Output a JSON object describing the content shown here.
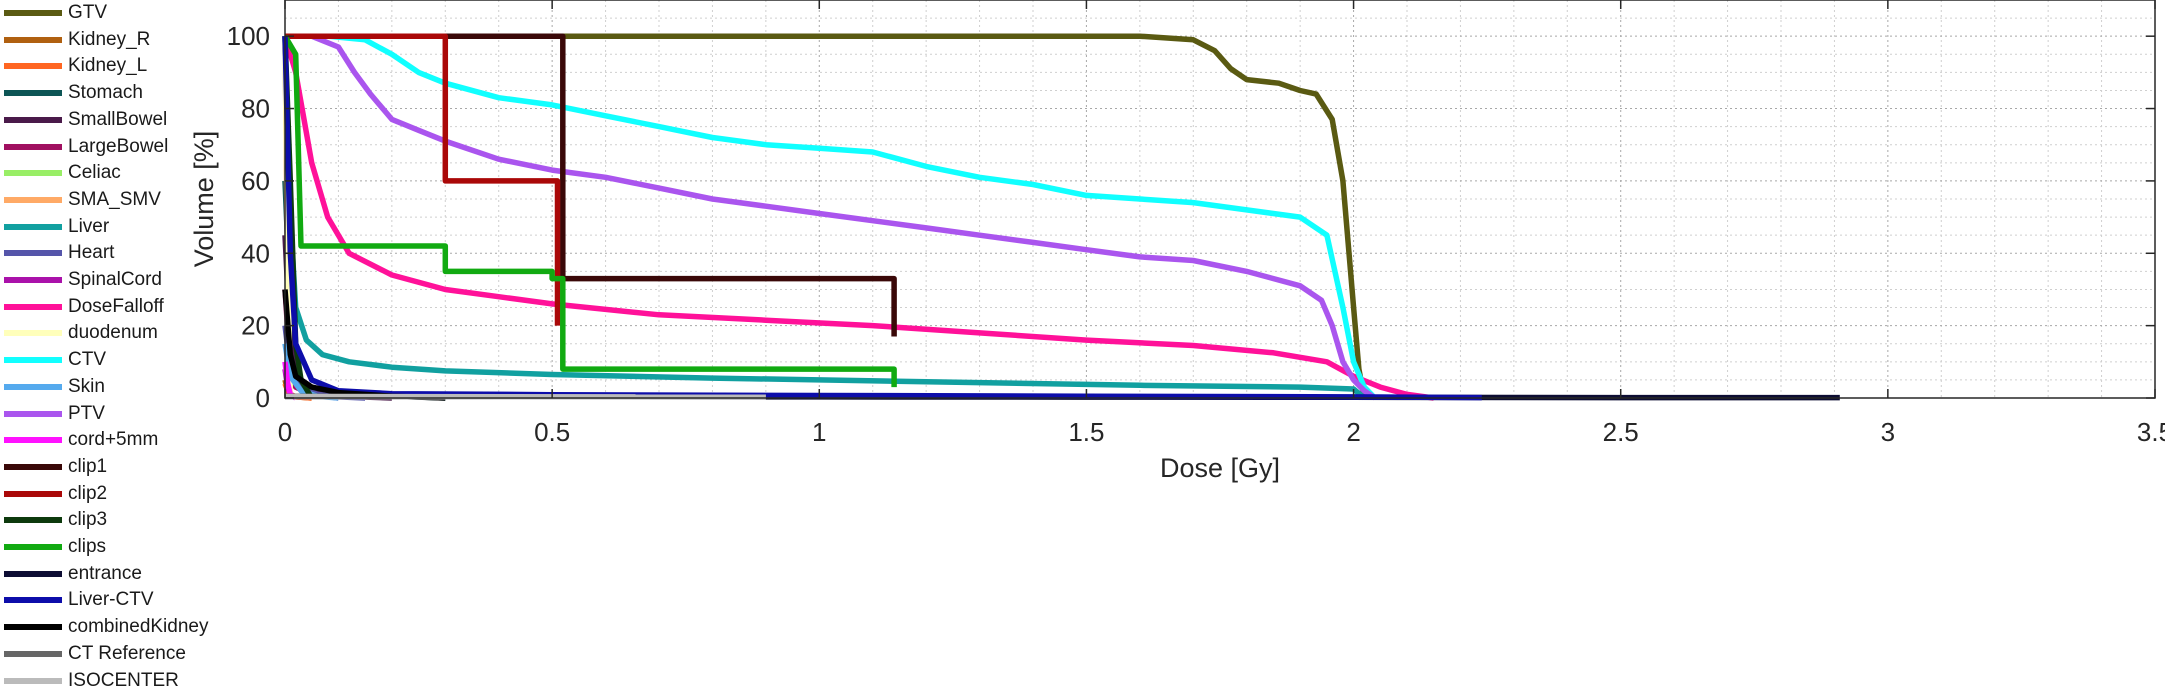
{
  "chart_data": {
    "type": "line",
    "title": "",
    "xlabel": "Dose [Gy]",
    "ylabel": "Volume [%]",
    "xlim": [
      0,
      3.5
    ],
    "ylim": [
      0,
      110
    ],
    "xticks": [
      {
        "value": 0,
        "label": "0"
      },
      {
        "value": 0.5,
        "label": "0.5"
      },
      {
        "value": 1,
        "label": "1"
      },
      {
        "value": 1.5,
        "label": "1.5"
      },
      {
        "value": 2,
        "label": "2"
      },
      {
        "value": 2.5,
        "label": "2.5"
      },
      {
        "value": 3,
        "label": "3"
      },
      {
        "value": 3.5,
        "label": "3.5"
      }
    ],
    "yticks": [
      {
        "value": 0,
        "label": "0"
      },
      {
        "value": 20,
        "label": "20"
      },
      {
        "value": 40,
        "label": "40"
      },
      {
        "value": 60,
        "label": "60"
      },
      {
        "value": 80,
        "label": "80"
      },
      {
        "value": 100,
        "label": "100"
      }
    ],
    "grid": "major and minor, dotted",
    "legend_position": "left, outside plot",
    "series": [
      {
        "name": "GTV",
        "color": "#5a5a12",
        "x": [
          0,
          1.6,
          1.7,
          1.74,
          1.77,
          1.8,
          1.86,
          1.9,
          1.93,
          1.96,
          1.98,
          2.0,
          2.01,
          2.02
        ],
        "y": [
          100,
          100,
          99,
          96,
          91,
          88,
          87,
          85,
          84,
          77,
          60,
          25,
          8,
          0
        ]
      },
      {
        "name": "Kidney_R",
        "color": "#b06010",
        "x": [
          0,
          0.005,
          0.01,
          0.02,
          0.05
        ],
        "y": [
          5,
          2,
          1,
          0.3,
          0
        ]
      },
      {
        "name": "Kidney_L",
        "color": "#ff6622",
        "x": [
          0,
          0.005,
          0.01,
          0.02,
          0.05
        ],
        "y": [
          4,
          2,
          1,
          0.3,
          0
        ]
      },
      {
        "name": "Stomach",
        "color": "#0d5555",
        "x": [
          0,
          0.01,
          0.02,
          0.03,
          0.05,
          0.08,
          0.15,
          0.3
        ],
        "y": [
          60,
          25,
          10,
          5,
          2.5,
          1.5,
          0.8,
          0
        ]
      },
      {
        "name": "SmallBowel",
        "color": "#4a1a4a",
        "x": [
          0,
          0.01,
          0.03,
          0.06,
          0.1,
          0.2
        ],
        "y": [
          45,
          15,
          5,
          2,
          0.5,
          0
        ]
      },
      {
        "name": "LargeBowel",
        "color": "#a01060",
        "x": [
          0,
          0.01,
          0.02,
          0.05,
          0.1
        ],
        "y": [
          30,
          8,
          3,
          1,
          0
        ]
      },
      {
        "name": "Celiac",
        "color": "#99ee66",
        "x": [
          0,
          0.005,
          0.01
        ],
        "y": [
          100,
          40,
          0
        ]
      },
      {
        "name": "SMA_SMV",
        "color": "#ffaa66",
        "x": [
          0,
          0.005,
          0.01
        ],
        "y": [
          100,
          30,
          0
        ]
      },
      {
        "name": "Liver",
        "color": "#11a0a0",
        "x": [
          0,
          0.01,
          0.02,
          0.04,
          0.07,
          0.12,
          0.2,
          0.3,
          0.5,
          0.8,
          1.2,
          1.6,
          1.9,
          2.0,
          2.02
        ],
        "y": [
          100,
          50,
          25,
          16,
          12,
          10,
          8.5,
          7.5,
          6.5,
          5.5,
          4.5,
          3.5,
          3.0,
          2.5,
          0
        ]
      },
      {
        "name": "Heart",
        "color": "#5555aa",
        "x": [
          0,
          0.01,
          0.03,
          0.06,
          0.1,
          0.15
        ],
        "y": [
          20,
          8,
          3,
          1,
          0.3,
          0
        ]
      },
      {
        "name": "SpinalCord",
        "color": "#aa11aa",
        "x": [
          0,
          0.005,
          0.01,
          0.02
        ],
        "y": [
          8,
          3,
          1,
          0
        ]
      },
      {
        "name": "DoseFalloff",
        "color": "#ff1199",
        "x": [
          0,
          0.02,
          0.05,
          0.08,
          0.12,
          0.2,
          0.3,
          0.4,
          0.5,
          0.7,
          0.9,
          1.1,
          1.3,
          1.5,
          1.7,
          1.85,
          1.95,
          2.0,
          2.05,
          2.1,
          2.15
        ],
        "y": [
          100,
          90,
          65,
          50,
          40,
          34,
          30,
          28,
          26,
          23,
          21.5,
          20,
          18,
          16,
          14.5,
          12.5,
          10,
          6,
          3,
          1,
          0
        ]
      },
      {
        "name": "duodenum",
        "color": "#ffffbb",
        "x": [
          0,
          0.005,
          0.01
        ],
        "y": [
          100,
          40,
          0
        ]
      },
      {
        "name": "CTV",
        "color": "#11ffff",
        "x": [
          0,
          0.08,
          0.15,
          0.2,
          0.25,
          0.3,
          0.4,
          0.5,
          0.6,
          0.7,
          0.8,
          0.9,
          1.0,
          1.1,
          1.2,
          1.3,
          1.4,
          1.5,
          1.6,
          1.7,
          1.8,
          1.9,
          1.95,
          1.98,
          2.0,
          2.02,
          2.04
        ],
        "y": [
          100,
          100,
          99,
          95,
          90,
          87,
          83,
          81,
          78,
          75,
          72,
          70,
          69,
          68,
          64,
          61,
          59,
          56,
          55,
          54,
          52,
          50,
          45,
          25,
          10,
          3,
          0
        ]
      },
      {
        "name": "Skin",
        "color": "#55aaee",
        "x": [
          0,
          0.01,
          0.03,
          0.06,
          0.1
        ],
        "y": [
          15,
          6,
          2,
          0.5,
          0
        ]
      },
      {
        "name": "PTV",
        "color": "#aa55ee",
        "x": [
          0,
          0.05,
          0.1,
          0.13,
          0.16,
          0.2,
          0.25,
          0.3,
          0.4,
          0.5,
          0.6,
          0.7,
          0.8,
          0.9,
          1.0,
          1.1,
          1.2,
          1.3,
          1.4,
          1.5,
          1.6,
          1.7,
          1.8,
          1.9,
          1.94,
          1.96,
          1.98,
          2.0,
          2.02,
          2.04
        ],
        "y": [
          100,
          100,
          97,
          90,
          84,
          77,
          74,
          71,
          66,
          63,
          61,
          58,
          55,
          53,
          51,
          49,
          47,
          45,
          43,
          41,
          39,
          38,
          35,
          31,
          27,
          20,
          10,
          5,
          2,
          0
        ]
      },
      {
        "name": "cord+5mm",
        "color": "#ff11ff",
        "x": [
          0,
          0.005,
          0.01,
          0.02
        ],
        "y": [
          10,
          4,
          1,
          0
        ]
      },
      {
        "name": "clip1",
        "color": "#3a0808",
        "x": [
          0,
          0.52,
          0.52,
          1.14,
          1.14
        ],
        "y": [
          100,
          100,
          33,
          33,
          17
        ]
      },
      {
        "name": "clip2",
        "color": "#aa0808",
        "x": [
          0,
          0.3,
          0.3,
          0.51,
          0.51
        ],
        "y": [
          100,
          100,
          60,
          60,
          20
        ]
      },
      {
        "name": "clip3",
        "color": "#0d3a0d",
        "x": [
          0,
          0.01,
          0.02,
          0.03,
          0.05
        ],
        "y": [
          100,
          60,
          15,
          5,
          0
        ]
      },
      {
        "name": "clips",
        "color": "#11aa11",
        "x": [
          0,
          0.02,
          0.03,
          0.3,
          0.3,
          0.5,
          0.5,
          0.52,
          0.52,
          1.14,
          1.14
        ],
        "y": [
          100,
          95,
          42,
          42,
          35,
          35,
          33,
          33,
          8,
          8,
          3
        ]
      },
      {
        "name": "entrance",
        "color": "#0d0d33",
        "x": [
          0,
          0.5,
          1.0,
          1.5,
          2.0,
          2.5,
          2.91
        ],
        "y": [
          0.4,
          0.4,
          0.3,
          0.25,
          0.2,
          0.1,
          0.1
        ]
      },
      {
        "name": "Liver-CTV",
        "color": "#0d0daa",
        "x": [
          0,
          0.005,
          0.01,
          0.02,
          0.05,
          0.1,
          0.2,
          0.5,
          1.0,
          1.5,
          2.0,
          2.24
        ],
        "y": [
          100,
          70,
          40,
          15,
          5,
          2,
          1.2,
          0.9,
          0.7,
          0.5,
          0.3,
          0.1
        ]
      },
      {
        "name": "combinedKidney",
        "color": "#000000",
        "x": [
          0,
          0.01,
          0.02,
          0.05,
          0.1,
          0.2,
          0.3
        ],
        "y": [
          30,
          12,
          6,
          3,
          1.5,
          0.5,
          0
        ]
      },
      {
        "name": "CT Reference",
        "color": "#666666",
        "x": [
          0,
          0.3
        ],
        "y": [
          0.5,
          0.3
        ]
      },
      {
        "name": "ISOCENTER",
        "color": "#bbbbbb",
        "x": [
          0,
          0.9
        ],
        "y": [
          0.4,
          0.3
        ]
      }
    ]
  }
}
